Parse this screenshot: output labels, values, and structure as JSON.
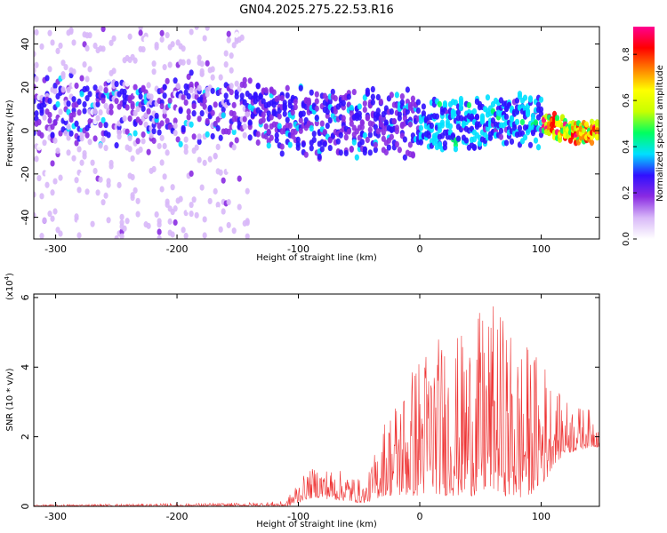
{
  "title": "GN04.2025.275.22.53.R16",
  "chart_data": [
    {
      "type": "heatmap",
      "title": "GN04.2025.275.22.53.R16",
      "xlabel": "Height of straight line (km)",
      "ylabel": "Frequency (Hz)",
      "xlim": [
        -318,
        148
      ],
      "ylim": [
        -50,
        48
      ],
      "xticks": [
        -300,
        -200,
        -100,
        0,
        100
      ],
      "xtick_labels": [
        "-300",
        "-200",
        "-100",
        "0",
        "100"
      ],
      "yticks": [
        -40,
        -20,
        0,
        20,
        40
      ],
      "ytick_labels": [
        "-40",
        "-20",
        "0",
        "20",
        "40"
      ],
      "colorbar": {
        "label": "Normalized spectral amplitude",
        "range": [
          0,
          0.92
        ],
        "ticks": [
          0,
          0.2,
          0.4,
          0.6,
          0.8
        ],
        "tick_labels": [
          "0.0",
          "0.2",
          "0.4",
          "0.6",
          "0.8"
        ],
        "colors": [
          "#ffffff",
          "#d8b8f8",
          "#8a2be2",
          "#3010ff",
          "#00e0ff",
          "#00ff60",
          "#c8ff00",
          "#ffff00",
          "#ff8000",
          "#ff0000",
          "#ff0090"
        ]
      },
      "ridge": {
        "x": [
          -318,
          -270,
          -220,
          -180,
          -140,
          -110,
          -80,
          -50,
          -20,
          0,
          20,
          50,
          70,
          90,
          110,
          130,
          148
        ],
        "freq": [
          10,
          10,
          10,
          9,
          8,
          6,
          3,
          2,
          4,
          4,
          3,
          2,
          6,
          5,
          2,
          -1,
          0
        ]
      },
      "grid": false
    },
    {
      "type": "line",
      "xlabel": "Height of straight line (km)",
      "ylabel": "SNR (10 * v/v)",
      "y_multiplier_label": "(x10",
      "y_multiplier_exponent": "4",
      "y_multiplier_close": ")",
      "xlim": [
        -318,
        148
      ],
      "ylim": [
        0,
        6.1
      ],
      "xticks": [
        -300,
        -200,
        -100,
        0,
        100
      ],
      "xtick_labels": [
        "-300",
        "-200",
        "-100",
        "0",
        "100"
      ],
      "yticks": [
        0,
        2,
        4,
        6
      ],
      "ytick_labels": [
        "0",
        "2",
        "4",
        "6"
      ],
      "color": "#ee3333",
      "envelope": {
        "x": [
          -318,
          -150,
          -110,
          -102,
          -95,
          -85,
          -75,
          -60,
          -50,
          -45,
          -40,
          -30,
          -20,
          -10,
          0,
          10,
          20,
          30,
          40,
          50,
          60,
          70,
          80,
          90,
          100,
          105,
          110,
          120,
          130,
          140,
          148
        ],
        "max": [
          0.05,
          0.1,
          0.15,
          0.7,
          0.9,
          1.2,
          1.1,
          1.0,
          0.8,
          0.6,
          1.2,
          2.5,
          3.2,
          3.8,
          4.6,
          4.9,
          5.0,
          4.9,
          5.2,
          5.6,
          5.8,
          5.5,
          4.8,
          4.7,
          4.3,
          4.2,
          3.4,
          3.1,
          2.9,
          2.8,
          2.6
        ],
        "min": [
          0,
          0,
          0,
          0.05,
          0.2,
          0.25,
          0.2,
          0.15,
          0.1,
          0.1,
          0.15,
          0.3,
          0.3,
          0.3,
          0.3,
          0.4,
          0.3,
          0.3,
          0.3,
          0.3,
          0.5,
          0.3,
          0.2,
          0.3,
          0.6,
          0.8,
          1.2,
          1.5,
          1.6,
          1.7,
          1.7
        ]
      },
      "grid": false
    }
  ]
}
